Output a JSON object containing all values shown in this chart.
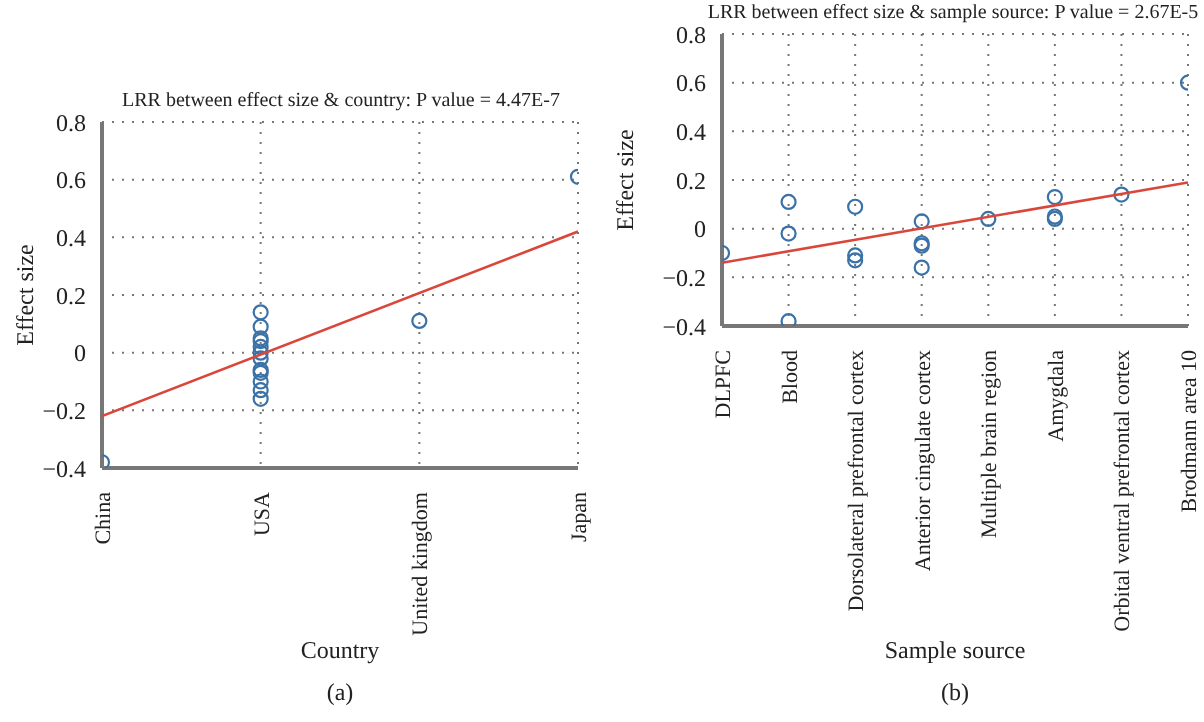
{
  "chart_data": [
    {
      "type": "scatter",
      "title": "LRR between effect size & country: P value = 4.47E-7",
      "xlabel": "Country",
      "ylabel": "Effect size",
      "categories": [
        "China",
        "USA",
        "United kingdom",
        "Japan"
      ],
      "ylim": [
        -0.4,
        0.8
      ],
      "yticks": [
        -0.4,
        -0.2,
        0,
        0.2,
        0.4,
        0.6,
        0.8
      ],
      "grid": true,
      "marker": "circle",
      "annotations": [
        "(a)"
      ],
      "series": [
        {
          "color": "#3a72a8",
          "x": [
            "China",
            "USA",
            "USA",
            "USA",
            "USA",
            "USA",
            "USA",
            "USA",
            "USA",
            "USA",
            "USA",
            "USA",
            "USA",
            "United kingdom",
            "Japan"
          ],
          "values": [
            -0.38,
            0.14,
            0.09,
            0.05,
            0.04,
            0.02,
            0.0,
            -0.02,
            -0.06,
            -0.07,
            -0.1,
            -0.13,
            -0.16,
            0.11,
            0.61
          ]
        },
        {
          "type": "line",
          "marker": "none",
          "color": "#d9473a",
          "x": [
            "China",
            "Japan"
          ],
          "values": [
            -0.22,
            0.42
          ]
        }
      ]
    },
    {
      "type": "scatter",
      "title": "LRR between effect size & sample source: P value = 2.67E-5",
      "xlabel": "Sample source",
      "ylabel": "Effect size",
      "categories": [
        "DLPFC",
        "Blood",
        "Dorsolateral prefrontal cortex",
        "Anterior cingulate cortex",
        "Multiple brain region",
        "Amygdala",
        "Orbital ventral prefrontal cortex",
        "Brodmann area 10"
      ],
      "ylim": [
        -0.4,
        0.8
      ],
      "yticks": [
        -0.4,
        -0.2,
        0,
        0.2,
        0.4,
        0.6,
        0.8
      ],
      "grid": true,
      "marker": "circle",
      "annotations": [
        "(b)"
      ],
      "series": [
        {
          "color": "#3a72a8",
          "x": [
            "DLPFC",
            "Blood",
            "Blood",
            "Blood",
            "Dorsolateral prefrontal cortex",
            "Dorsolateral prefrontal cortex",
            "Dorsolateral prefrontal cortex",
            "Anterior cingulate cortex",
            "Anterior cingulate cortex",
            "Anterior cingulate cortex",
            "Anterior cingulate cortex",
            "Multiple brain region",
            "Amygdala",
            "Amygdala",
            "Amygdala",
            "Orbital ventral prefrontal cortex",
            "Brodmann area 10"
          ],
          "values": [
            -0.1,
            0.11,
            -0.02,
            -0.38,
            0.09,
            -0.11,
            -0.13,
            0.03,
            -0.06,
            -0.07,
            -0.16,
            0.04,
            0.13,
            0.05,
            0.04,
            0.14,
            0.6
          ]
        },
        {
          "type": "line",
          "marker": "none",
          "color": "#d9473a",
          "x": [
            "DLPFC",
            "Brodmann area 10"
          ],
          "values": [
            -0.14,
            0.19
          ]
        }
      ]
    }
  ]
}
